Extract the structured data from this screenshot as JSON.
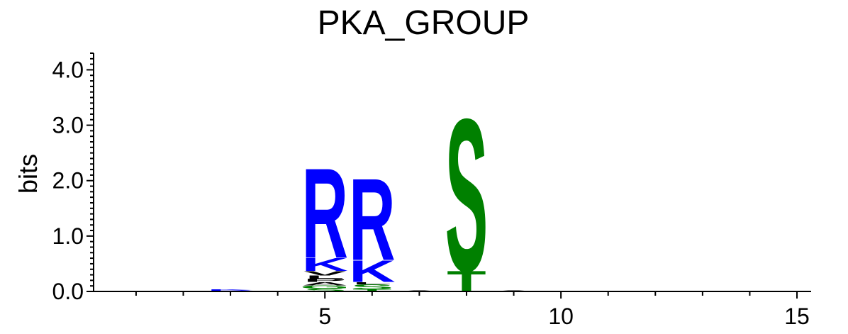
{
  "chart_data": {
    "type": "sequence_logo",
    "title": "PKA_GROUP",
    "ylabel": "bits",
    "xlabel": "",
    "ylim": [
      0,
      4.3
    ],
    "xlim": [
      0.1,
      15.3
    ],
    "y_ticks": [
      "0.0",
      "1.0",
      "2.0",
      "3.0",
      "4.0"
    ],
    "x_ticks": [
      "5",
      "10",
      "15"
    ],
    "colors": {
      "R": "#0000ff",
      "K": "#0000ff",
      "H": "#0000ff",
      "S": "#008000",
      "T": "#008000",
      "G": "#008000",
      "A": "#000000",
      "L": "#000000",
      "V": "#000000",
      "P": "#000000",
      "E": "#ff0000",
      "D": "#ff0000"
    },
    "positions": [
      {
        "pos": 3,
        "stack": [
          [
            "R",
            0.02
          ],
          [
            "K",
            0.02
          ]
        ]
      },
      {
        "pos": 5,
        "stack": [
          [
            "S",
            0.05
          ],
          [
            "G",
            0.06
          ],
          [
            "A",
            0.06
          ],
          [
            "P",
            0.06
          ],
          [
            "L",
            0.06
          ],
          [
            "V",
            0.08
          ],
          [
            "K",
            0.24
          ],
          [
            "R",
            1.67
          ]
        ]
      },
      {
        "pos": 6,
        "stack": [
          [
            "T",
            0.04
          ],
          [
            "S",
            0.09
          ],
          [
            "L",
            0.04
          ],
          [
            "K",
            0.4
          ],
          [
            "R",
            1.52
          ]
        ]
      },
      {
        "pos": 7,
        "stack": [
          [
            "A",
            0.02
          ]
        ]
      },
      {
        "pos": 8,
        "stack": [
          [
            "T",
            0.38
          ],
          [
            "S",
            2.83
          ]
        ]
      },
      {
        "pos": 9,
        "stack": [
          [
            "A",
            0.02
          ]
        ]
      }
    ]
  }
}
